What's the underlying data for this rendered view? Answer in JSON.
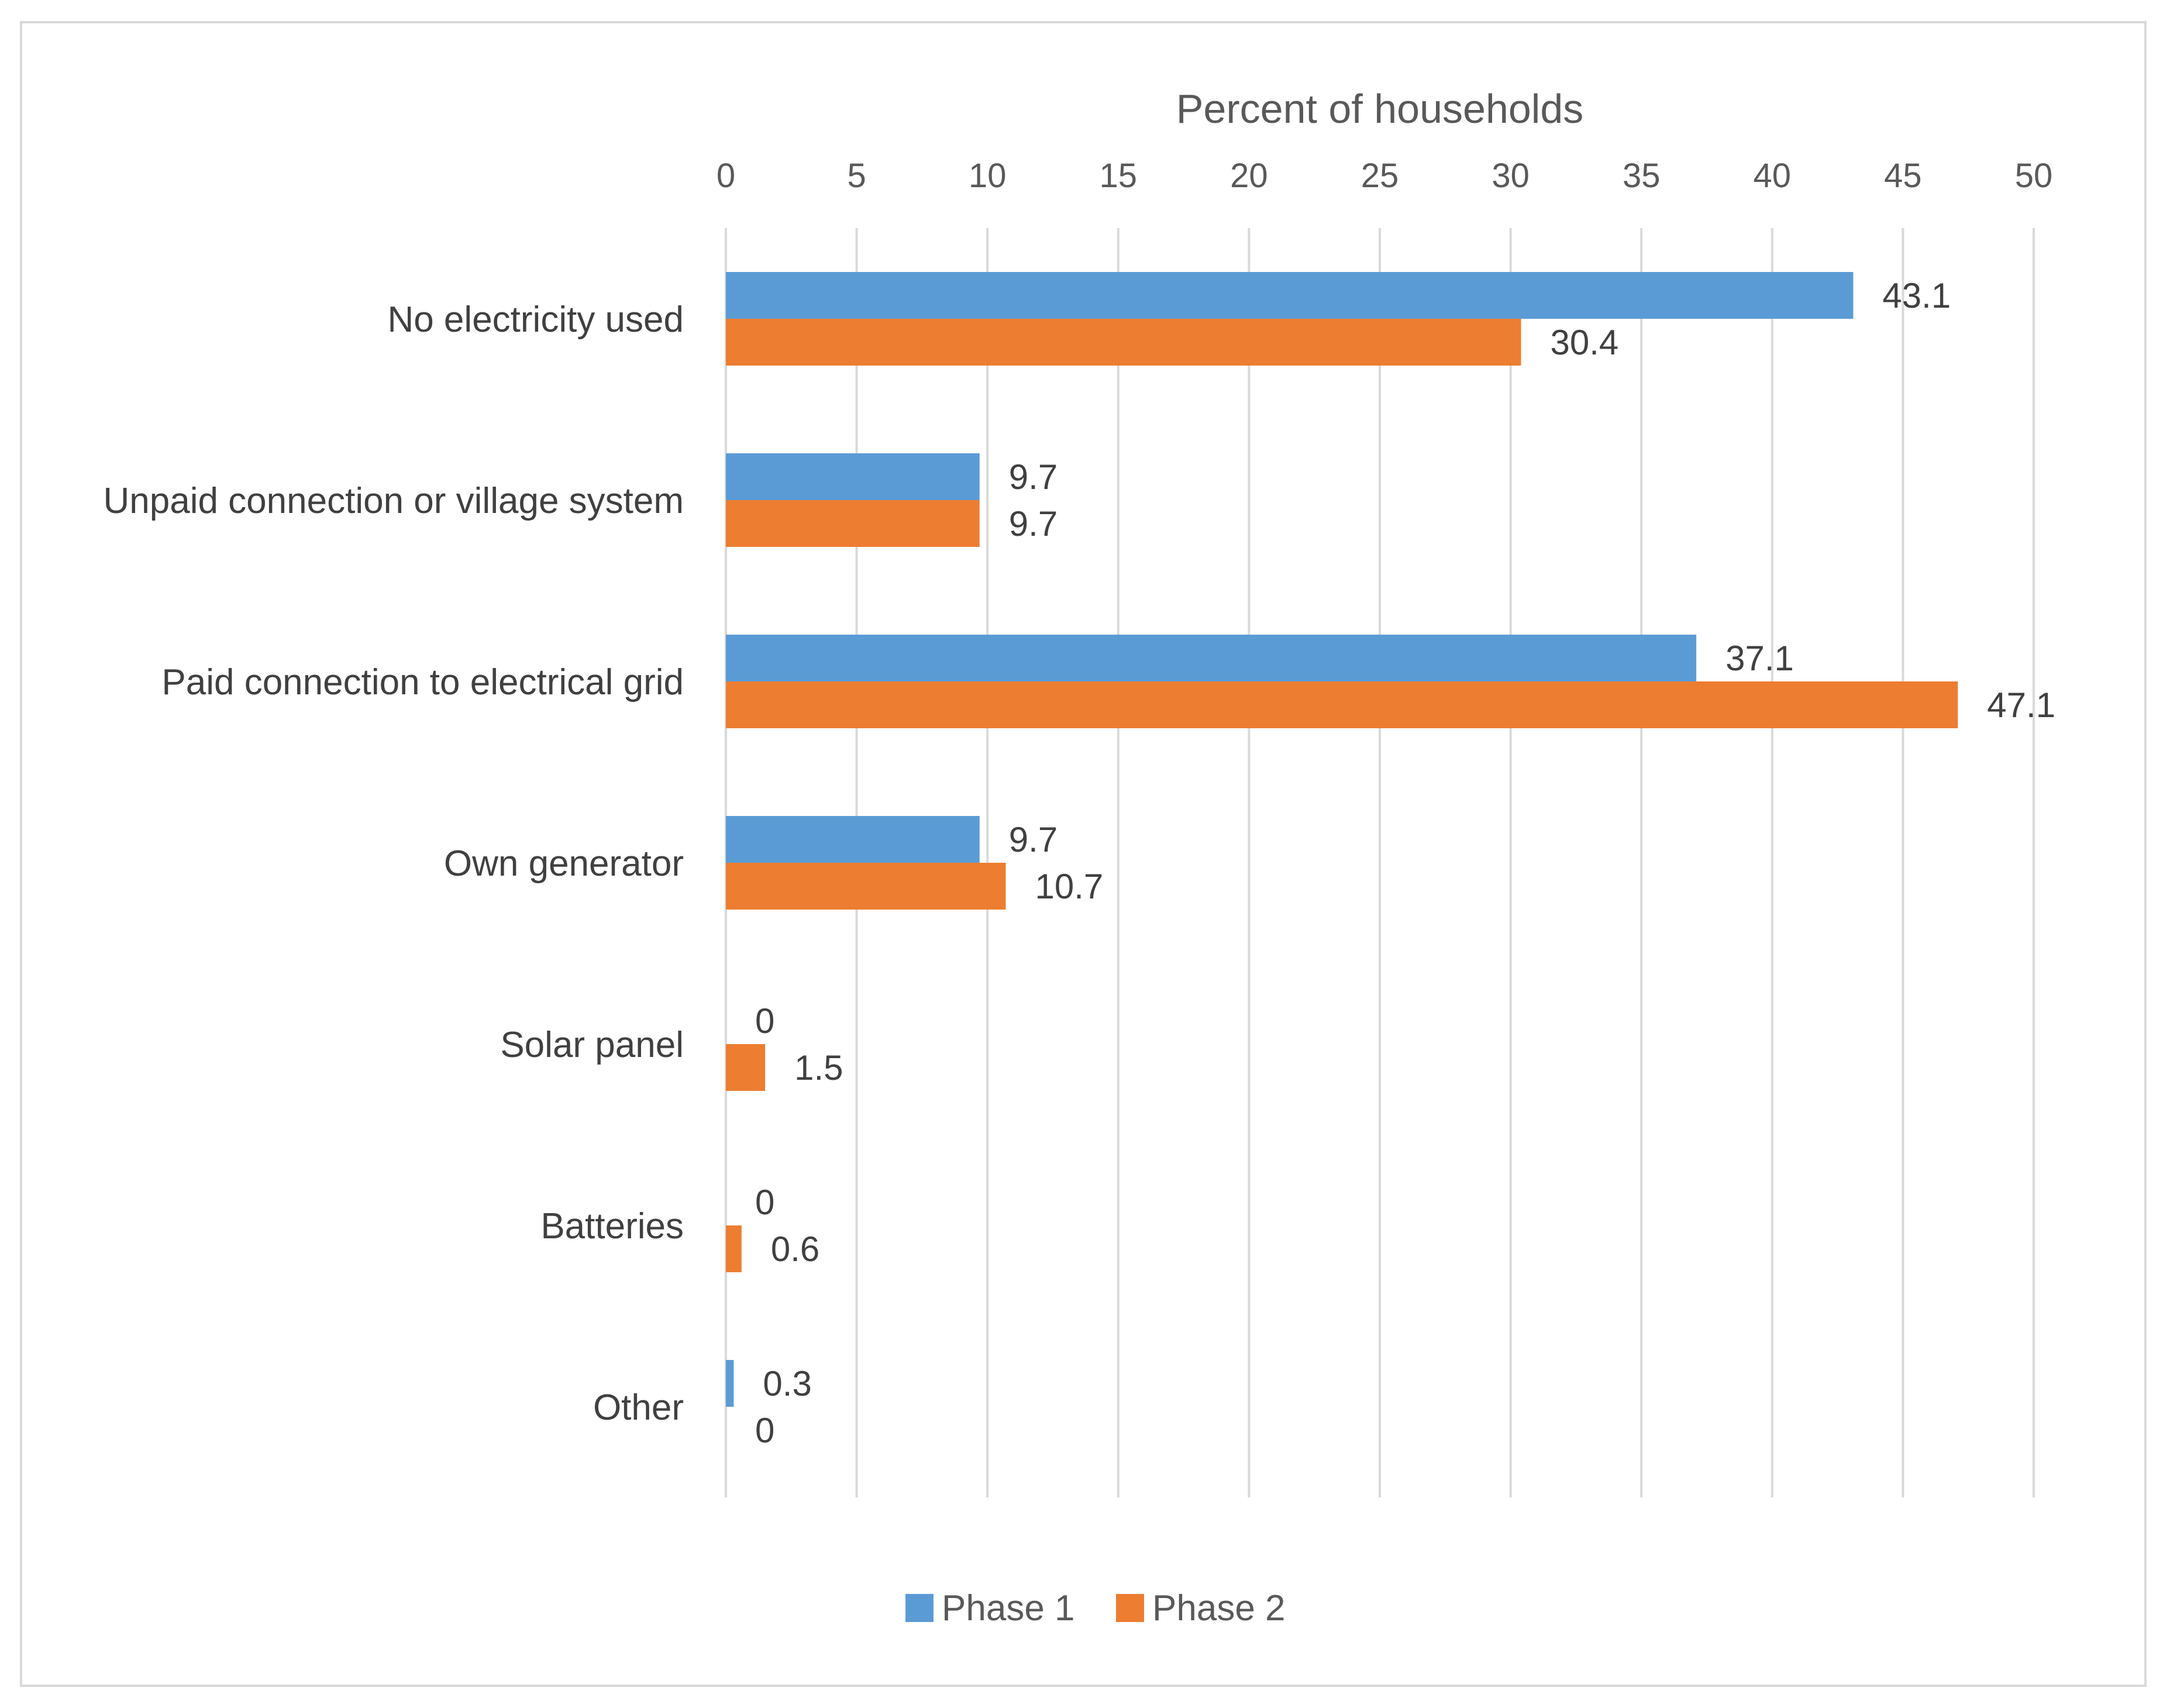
{
  "chart_data": {
    "type": "bar",
    "orientation": "horizontal",
    "title": "",
    "xlabel": "Percent of households",
    "ylabel": "",
    "xlim": [
      0,
      50
    ],
    "x_ticks": [
      0,
      5,
      10,
      15,
      20,
      25,
      30,
      35,
      40,
      45,
      50
    ],
    "x_tick_labels": [
      "0",
      "5",
      "10",
      "15",
      "20",
      "25",
      "30",
      "35",
      "40",
      "45",
      "50"
    ],
    "grid": "vertical",
    "x_axis_position": "top",
    "legend_position": "bottom",
    "categories": [
      "No electricity used",
      "Unpaid connection or village system",
      "Paid connection to electrical grid",
      "Own generator",
      "Solar panel",
      "Batteries",
      "Other"
    ],
    "series": [
      {
        "name": "Phase 1",
        "color": "#5b9bd5",
        "values": [
          43.1,
          9.7,
          37.1,
          9.7,
          0,
          0,
          0.3
        ],
        "labels": [
          "43.1",
          "9.7",
          "37.1",
          "9.7",
          "0",
          "0",
          "0.3"
        ]
      },
      {
        "name": "Phase 2",
        "color": "#ed7d31",
        "values": [
          30.4,
          9.7,
          47.1,
          10.7,
          1.5,
          0.6,
          0
        ],
        "labels": [
          "30.4",
          "9.7",
          "47.1",
          "10.7",
          "1.5",
          "0.6",
          "0"
        ]
      }
    ]
  }
}
